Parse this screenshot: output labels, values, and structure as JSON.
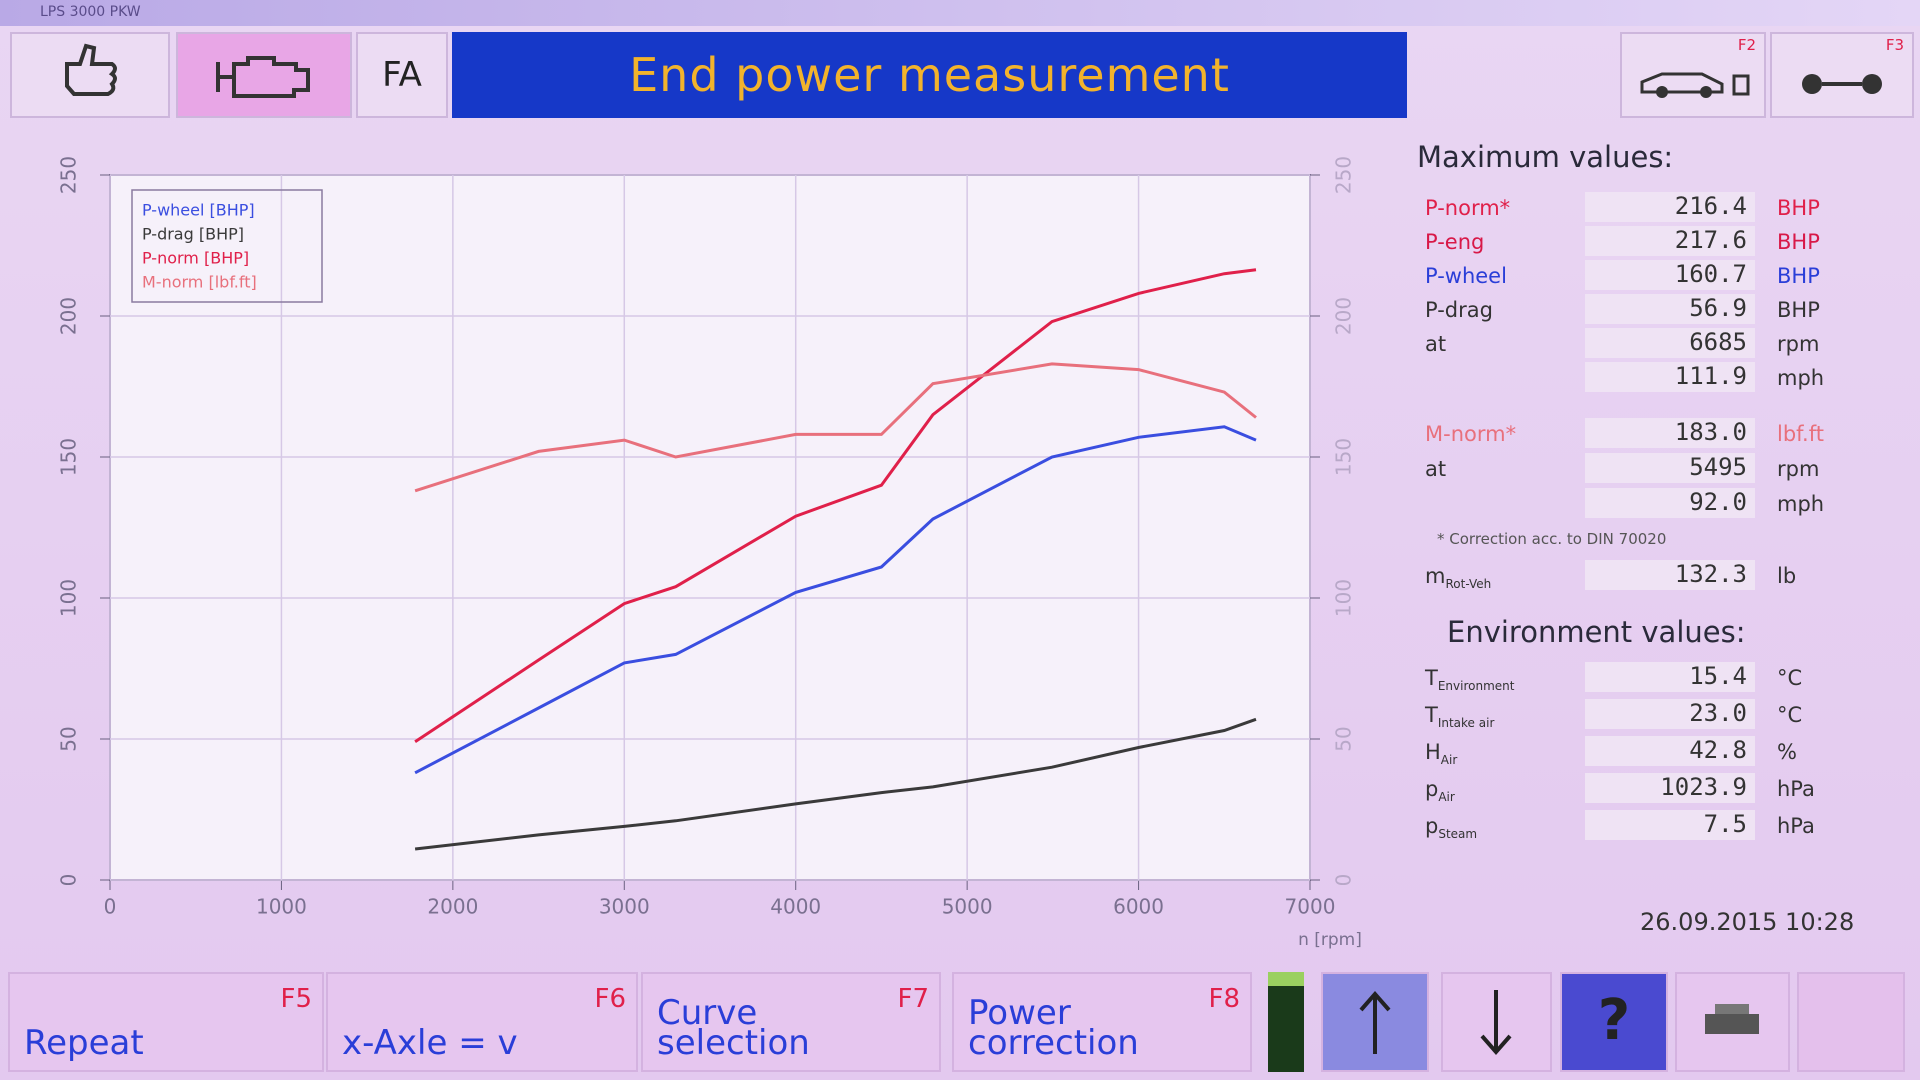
{
  "window": {
    "title": "LPS 3000 PKW"
  },
  "toolbar": {
    "fa": "FA",
    "title": "End power measurement",
    "f2": "F2",
    "f3": "F3"
  },
  "chart_data": {
    "type": "line",
    "x": [
      1780,
      2500,
      3000,
      3300,
      4000,
      4500,
      4800,
      5495,
      6000,
      6500,
      6685
    ],
    "series": [
      {
        "name": "P-wheel [BHP]",
        "color": "#3a4ee0",
        "values": [
          38,
          61,
          77,
          80,
          102,
          111,
          128,
          150,
          157,
          160.7,
          156
        ]
      },
      {
        "name": "P-drag [BHP]",
        "color": "#3a3a3a",
        "values": [
          11,
          16,
          19,
          21,
          27,
          31,
          33,
          40,
          47,
          53,
          57
        ]
      },
      {
        "name": "P-norm [BHP]",
        "color": "#e0204a",
        "values": [
          49,
          78,
          98,
          104,
          129,
          140,
          165,
          198,
          208,
          215,
          216.4
        ]
      },
      {
        "name": "M-norm [lbf.ft]",
        "color": "#e8707c",
        "axis": "y2",
        "values": [
          138,
          152,
          156,
          150,
          158,
          158,
          176,
          183,
          181,
          173,
          164
        ]
      }
    ],
    "xlabel": "n [rpm]",
    "xlim": [
      0,
      7000
    ],
    "xticks": [
      0,
      1000,
      2000,
      3000,
      4000,
      5000,
      6000,
      7000
    ],
    "ylim": [
      0,
      250
    ],
    "yticks": [
      0,
      50,
      100,
      150,
      200,
      250
    ],
    "y2lim": [
      0,
      250
    ],
    "y2ticks": [
      0,
      50,
      100,
      150,
      200,
      250
    ],
    "grid": true,
    "legend": "upper left"
  },
  "max_values": {
    "title": "Maximum values:",
    "power_rows": [
      {
        "label": "P-norm*",
        "value": "216.4",
        "unit": "BHP",
        "color": "#e0204a"
      },
      {
        "label": "P-eng",
        "value": "217.6",
        "unit": "BHP",
        "color": "#d81848"
      },
      {
        "label": "P-wheel",
        "value": "160.7",
        "unit": "BHP",
        "color": "#2a3ed8"
      },
      {
        "label": "P-drag",
        "value": "56.9",
        "unit": "BHP",
        "color": "#333333"
      },
      {
        "label": "at",
        "value": "6685",
        "unit": "rpm",
        "color": "#333333"
      },
      {
        "value": "111.9",
        "unit": "mph",
        "color": "#333333"
      }
    ],
    "torque_rows": [
      {
        "label": "M-norm*",
        "value": "183.0",
        "unit": "lbf.ft",
        "color": "#e8707c"
      },
      {
        "label": "at",
        "value": "5495",
        "unit": "rpm",
        "color": "#333333"
      },
      {
        "value": "92.0",
        "unit": "mph",
        "color": "#333333"
      }
    ],
    "note": "* Correction acc. to DIN 70020",
    "mass": {
      "symbol": "m",
      "sub": "Rot-Veh",
      "value": "132.3",
      "unit": "lb"
    }
  },
  "environment": {
    "title": "Environment values:",
    "rows": [
      {
        "symbol": "T",
        "sub": "Environment",
        "value": "15.4",
        "unit": "°C"
      },
      {
        "symbol": "T",
        "sub": "Intake air",
        "value": "23.0",
        "unit": "°C"
      },
      {
        "symbol": "H",
        "sub": "Air",
        "value": "42.8",
        "unit": "%"
      },
      {
        "symbol": "p",
        "sub": "Air",
        "value": "1023.9",
        "unit": "hPa"
      },
      {
        "symbol": "p",
        "sub": "Steam",
        "value": "7.5",
        "unit": "hPa"
      }
    ]
  },
  "datetime": "26.09.2015 10:28",
  "buttons": [
    {
      "label": "Repeat",
      "key": "F5"
    },
    {
      "label": "x-Axle = v",
      "key": "F6"
    },
    {
      "label": "Curve selection",
      "key": "F7"
    },
    {
      "label": "Power correction",
      "key": "F8"
    }
  ],
  "help": "?"
}
